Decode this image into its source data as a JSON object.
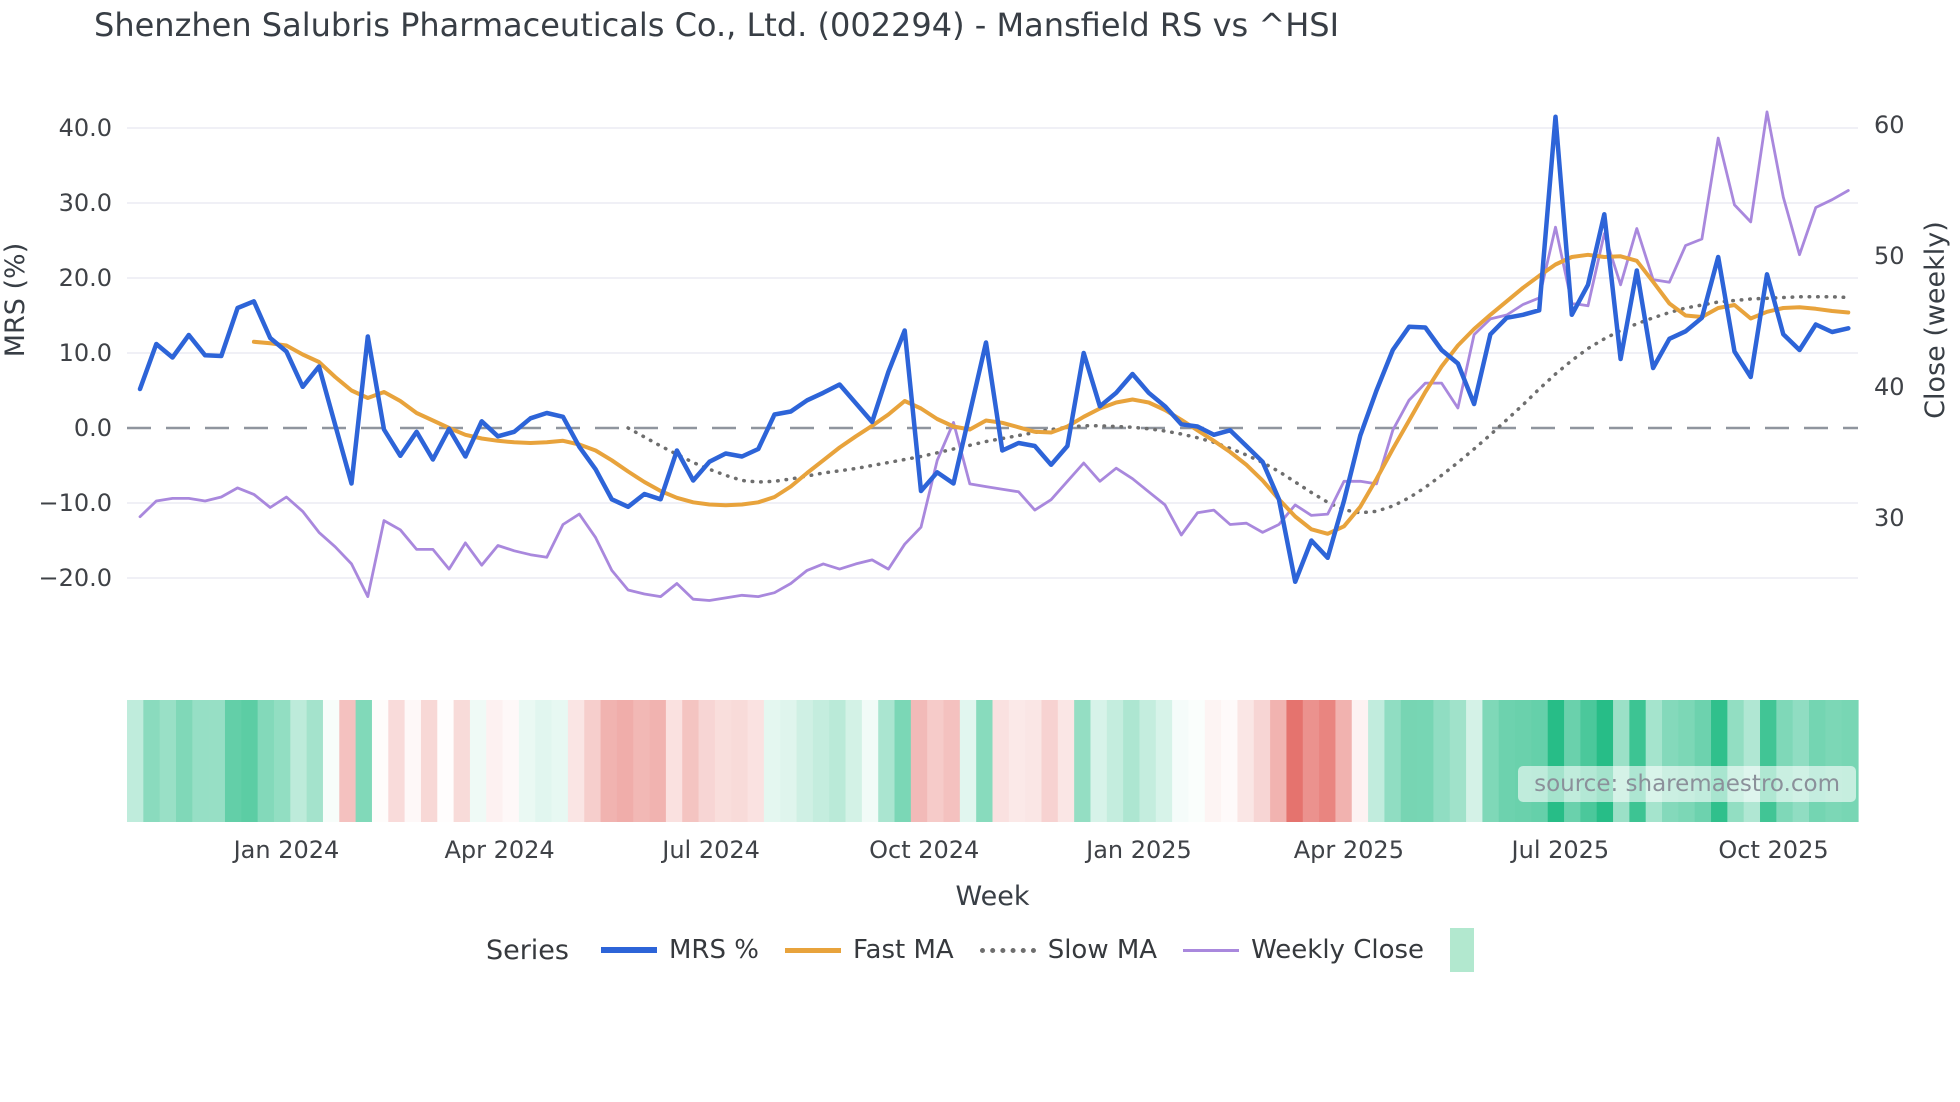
{
  "source": {
    "text": "source: sharemaestro.com"
  },
  "legend": {
    "series_label": "Series"
  },
  "colors": {
    "blue": "#2d64d8",
    "orange": "#e8a33c",
    "slow": "#6e6e6e",
    "purple": "#a988dd",
    "zero_line": "#8f959e",
    "grid": "#ececf3",
    "title_text": "#383e45",
    "tick_text": "#3f4247",
    "heat_pos": "#27bd87",
    "heat_neg": "#e2605a",
    "heat_patch": "#b2e8cf",
    "source_text": "#8b909a"
  },
  "chart_data": {
    "type": "line",
    "title": "Shenzhen Salubris Pharmaceuticals Co., Ltd. (002294) - Mansfield RS vs ^HSI",
    "xlabel": "Week",
    "ylabel_left": "MRS (%)",
    "ylabel_right": "Close (weekly)",
    "weeks": 106,
    "x_ticks": [
      {
        "label": "Jan 2024",
        "week": 9.0
      },
      {
        "label": "Apr 2024",
        "week": 22.1
      },
      {
        "label": "Jul 2024",
        "week": 35.1
      },
      {
        "label": "Oct 2024",
        "week": 48.2
      },
      {
        "label": "Jan 2025",
        "week": 61.4
      },
      {
        "label": "Apr 2025",
        "week": 74.3
      },
      {
        "label": "Jul 2025",
        "week": 87.3
      },
      {
        "label": "Oct 2025",
        "week": 100.4
      }
    ],
    "y_left_ticks": [
      {
        "label": "40.0",
        "value": 40
      },
      {
        "label": "30.0",
        "value": 30
      },
      {
        "label": "20.0",
        "value": 20
      },
      {
        "label": "10.0",
        "value": 10
      },
      {
        "label": "0.0",
        "value": 0
      },
      {
        "label": "−10.0",
        "value": -10
      },
      {
        "label": "−20.0",
        "value": -20
      }
    ],
    "y_right_ticks": [
      {
        "label": "60",
        "value": 60
      },
      {
        "label": "50",
        "value": 50
      },
      {
        "label": "40",
        "value": 40
      },
      {
        "label": "30",
        "value": 30
      }
    ],
    "zero_line_value": 0,
    "legend_position": "bottom",
    "grid": true,
    "series": [
      {
        "name": "MRS %",
        "axis": "left",
        "style": "solid",
        "color_key": "blue",
        "width": 4.5,
        "values": [
          5.2,
          11.2,
          9.4,
          12.4,
          9.7,
          9.6,
          16.0,
          16.9,
          12.0,
          10.2,
          5.5,
          8.2,
          0.4,
          -7.4,
          12.2,
          -0.2,
          -3.7,
          -0.5,
          -4.2,
          -0.1,
          -3.8,
          0.9,
          -1.1,
          -0.5,
          1.3,
          2.0,
          1.5,
          -2.5,
          -5.5,
          -9.5,
          -10.5,
          -8.8,
          -9.5,
          -3.0,
          -7.0,
          -4.5,
          -3.4,
          -3.8,
          -2.8,
          1.8,
          2.2,
          3.7,
          4.7,
          5.8,
          3.3,
          0.8,
          7.5,
          13.0,
          -8.4,
          -5.9,
          -7.4,
          2.0,
          11.4,
          -3.0,
          -2.0,
          -2.4,
          -4.9,
          -2.4,
          10.0,
          2.9,
          4.7,
          7.2,
          4.7,
          2.9,
          0.5,
          0.2,
          -0.9,
          -0.3,
          -2.4,
          -4.5,
          -9.5,
          -20.5,
          -15.0,
          -17.3,
          -9.7,
          -1.0,
          5.0,
          10.4,
          13.5,
          13.4,
          10.4,
          8.6,
          3.2,
          12.5,
          14.7,
          15.1,
          15.7,
          41.5,
          15.1,
          19.1,
          28.5,
          9.2,
          21.0,
          8.0,
          11.9,
          12.9,
          14.7,
          22.8,
          10.2,
          6.8,
          20.5,
          12.5,
          10.4,
          13.8,
          12.8,
          13.3
        ]
      },
      {
        "name": "Fast MA",
        "axis": "left",
        "style": "solid",
        "color_key": "orange",
        "width": 4,
        "values": [
          null,
          null,
          null,
          null,
          null,
          null,
          null,
          11.5,
          11.3,
          11.0,
          9.8,
          8.8,
          6.8,
          5.0,
          4.0,
          4.8,
          3.6,
          2.0,
          1.0,
          0.0,
          -0.9,
          -1.4,
          -1.7,
          -1.9,
          -2.0,
          -1.9,
          -1.7,
          -2.2,
          -3.0,
          -4.3,
          -5.8,
          -7.2,
          -8.4,
          -9.3,
          -9.9,
          -10.2,
          -10.3,
          -10.2,
          -9.9,
          -9.2,
          -7.8,
          -6.0,
          -4.3,
          -2.6,
          -1.1,
          0.3,
          1.8,
          3.6,
          2.6,
          1.2,
          0.2,
          -0.2,
          1.0,
          0.7,
          0.1,
          -0.5,
          -0.6,
          0.2,
          1.5,
          2.6,
          3.4,
          3.8,
          3.4,
          2.4,
          1.1,
          -0.3,
          -1.7,
          -3.2,
          -4.9,
          -7.0,
          -9.5,
          -11.8,
          -13.5,
          -14.1,
          -13.1,
          -10.5,
          -6.8,
          -2.8,
          1.0,
          4.8,
          8.2,
          11.0,
          13.2,
          15.1,
          16.9,
          18.7,
          20.3,
          21.8,
          22.8,
          23.1,
          22.8,
          22.9,
          22.3,
          19.5,
          16.6,
          15.0,
          14.8,
          16.0,
          16.4,
          14.6,
          15.5,
          16.0,
          16.1,
          15.9,
          15.6,
          15.4
        ]
      },
      {
        "name": "Slow MA",
        "axis": "left",
        "style": "dotted",
        "color_key": "slow",
        "width": 3.5,
        "values": [
          null,
          null,
          null,
          null,
          null,
          null,
          null,
          null,
          null,
          null,
          null,
          null,
          null,
          null,
          null,
          null,
          null,
          null,
          null,
          null,
          null,
          null,
          null,
          null,
          null,
          null,
          null,
          null,
          null,
          null,
          0.0,
          -1.2,
          -2.4,
          -3.5,
          -4.6,
          -5.5,
          -6.3,
          -7.0,
          -7.2,
          -7.1,
          -6.8,
          -6.4,
          -6.0,
          -5.7,
          -5.4,
          -5.0,
          -4.6,
          -4.2,
          -3.8,
          -3.3,
          -2.8,
          -2.3,
          -1.8,
          -1.4,
          -1.0,
          -0.6,
          -0.2,
          0.1,
          0.3,
          0.3,
          0.2,
          0.1,
          -0.1,
          -0.4,
          -0.8,
          -1.3,
          -1.9,
          -2.7,
          -3.6,
          -4.6,
          -5.8,
          -7.2,
          -8.6,
          -9.9,
          -10.9,
          -11.3,
          -11.1,
          -10.4,
          -9.3,
          -7.9,
          -6.3,
          -4.6,
          -2.8,
          -0.9,
          1.1,
          3.1,
          5.2,
          7.2,
          9.0,
          10.6,
          11.9,
          13.0,
          13.9,
          14.7,
          15.4,
          16.0,
          16.4,
          16.8,
          17.0,
          17.2,
          17.3,
          17.4,
          17.5,
          17.5,
          17.5,
          17.4
        ]
      },
      {
        "name": "Weekly Close",
        "axis": "right",
        "style": "solid",
        "color_key": "purple",
        "width": 2.8,
        "values": [
          30.1,
          31.3,
          31.5,
          31.5,
          31.3,
          31.6,
          32.3,
          31.8,
          30.8,
          31.6,
          30.5,
          28.9,
          27.8,
          26.5,
          24.0,
          29.8,
          29.1,
          27.6,
          27.6,
          26.1,
          28.1,
          26.4,
          27.9,
          27.5,
          27.2,
          27.0,
          29.5,
          30.3,
          28.5,
          26.0,
          24.5,
          24.2,
          24.0,
          25.0,
          23.8,
          23.7,
          23.9,
          24.1,
          24.0,
          24.3,
          25.0,
          26.0,
          26.5,
          26.1,
          26.5,
          26.8,
          26.1,
          28.0,
          29.3,
          34.4,
          37.3,
          32.6,
          32.4,
          32.2,
          32.0,
          30.6,
          31.4,
          32.8,
          34.2,
          32.8,
          33.8,
          33.0,
          32.0,
          31.0,
          28.7,
          30.4,
          30.6,
          29.5,
          29.6,
          28.9,
          29.5,
          31.0,
          30.2,
          30.3,
          32.8,
          32.8,
          32.6,
          36.7,
          39.0,
          40.3,
          40.3,
          38.4,
          44.0,
          45.2,
          45.5,
          46.3,
          46.8,
          52.2,
          46.4,
          46.2,
          51.7,
          47.8,
          52.1,
          48.2,
          48.0,
          50.8,
          51.3,
          59.0,
          53.9,
          52.6,
          61.0,
          54.5,
          50.1,
          53.7,
          54.3,
          55.0
        ]
      }
    ],
    "heatmap": {
      "derived_from": "MRS %",
      "max_abs": 24,
      "positive_color_key": "heat_pos",
      "negative_color_key": "heat_neg"
    }
  }
}
